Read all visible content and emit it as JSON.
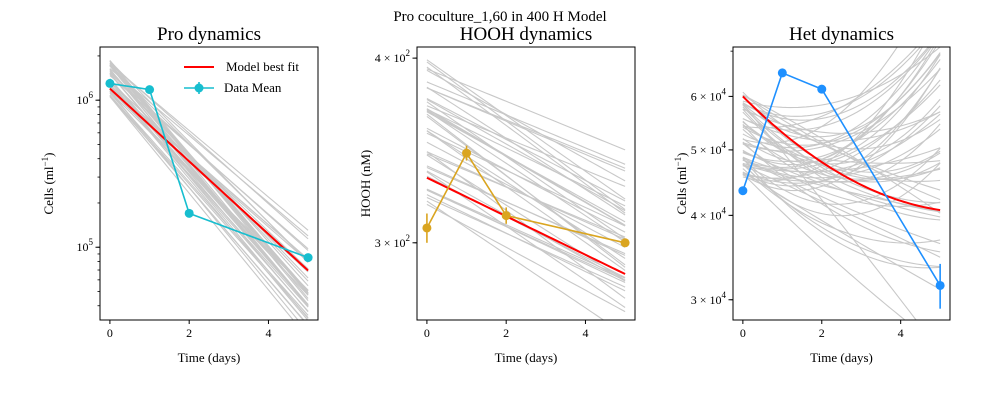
{
  "figure": {
    "suptitle": "Pro coculture_1,60 in 400 H Model"
  },
  "chart_data": [
    {
      "type": "line",
      "title": "Pro dynamics",
      "xlabel": "Time (days)",
      "ylabel": "Cells (ml$^{-1}$)",
      "ylabel_text": "Cells (ml",
      "ylabel_sup": "−1",
      "ylabel_close": ")",
      "yscale": "log",
      "xlim": [
        -0.25,
        5.25
      ],
      "ylim": [
        32000,
        2300000
      ],
      "xticks": [
        0,
        2,
        4
      ],
      "xtick_labels": [
        "0",
        "2",
        "4"
      ],
      "yticks_major": [
        {
          "value": 100000,
          "base": "10",
          "exp": "5"
        },
        {
          "value": 1000000,
          "base": "10",
          "exp": "6"
        }
      ],
      "legend": {
        "placement": "top-right",
        "entries": [
          "Model best fit",
          "Data Mean"
        ]
      },
      "best_fit": {
        "name": "Model best fit",
        "color": "#ff0000",
        "model": {
          "kind": "exp",
          "y0": 1200000,
          "rate": -0.57
        }
      },
      "ensemble": {
        "color": "#c8c8c8",
        "count": 45,
        "model": {
          "kind": "exp",
          "y0_range": [
            1050000,
            1900000
          ],
          "rate_range": [
            -0.76,
            -0.5
          ]
        }
      },
      "data_mean": {
        "name": "Data Mean",
        "color": "#17becf",
        "x": [
          0,
          1,
          2,
          5
        ],
        "y": [
          1300000,
          1180000,
          170000,
          85000
        ],
        "err": [
          0,
          0,
          0,
          0
        ]
      }
    },
    {
      "type": "line",
      "title": "HOOH dynamics",
      "xlabel": "Time (days)",
      "ylabel": "HOOH (nM)",
      "ylabel_text": "HOOH (nM)",
      "yscale": "log",
      "xlim": [
        -0.25,
        5.25
      ],
      "ylim": [
        266,
        407
      ],
      "xticks": [
        0,
        2,
        4
      ],
      "xtick_labels": [
        "0",
        "2",
        "4"
      ],
      "yticks_major": [
        {
          "value": 300,
          "base": "3 × 10",
          "exp": "2"
        },
        {
          "value": 400,
          "base": "4 × 10",
          "exp": "2"
        }
      ],
      "best_fit": {
        "name": "Model best fit",
        "color": "#ff0000",
        "model": {
          "kind": "exp",
          "y0": 332,
          "rate": -0.03
        }
      },
      "ensemble": {
        "color": "#c8c8c8",
        "count": 42,
        "model": {
          "kind": "exp",
          "y0_range": [
            318,
            400
          ],
          "rate_range": [
            -0.048,
            -0.025
          ]
        }
      },
      "data_mean": {
        "name": "Data Mean",
        "color": "#daa520",
        "x": [
          0,
          1,
          2,
          5
        ],
        "y": [
          307,
          345,
          313,
          300
        ],
        "err": [
          7,
          4,
          4,
          0
        ]
      }
    },
    {
      "type": "line",
      "title": "Het dynamics",
      "xlabel": "Time (days)",
      "ylabel": "Cells (ml$^{-1}$)",
      "ylabel_text": "Cells (ml",
      "ylabel_sup": "−1",
      "ylabel_close": ")",
      "yscale": "log",
      "xlim": [
        -0.25,
        5.25
      ],
      "ylim": [
        28000,
        71000
      ],
      "xticks": [
        0,
        2,
        4
      ],
      "xtick_labels": [
        "0",
        "2",
        "4"
      ],
      "yticks_major": [
        {
          "value": 30000,
          "base": "3 × 10",
          "exp": "4"
        },
        {
          "value": 40000,
          "base": "4 × 10",
          "exp": "4"
        },
        {
          "value": 50000,
          "base": "5 × 10",
          "exp": "4"
        },
        {
          "value": 60000,
          "base": "6 × 10",
          "exp": "4"
        }
      ],
      "best_fit": {
        "name": "Model best fit",
        "color": "#ff0000",
        "model": {
          "kind": "quad_log",
          "y0": 60000,
          "a": -0.135,
          "b": 0.0115
        }
      },
      "ensemble": {
        "color": "#c8c8c8",
        "count": 55,
        "model": {
          "kind": "quad_log",
          "y0_range": [
            45000,
            61000
          ],
          "a_range": [
            -0.16,
            -0.02
          ],
          "b_range": [
            -0.004,
            0.032
          ]
        }
      },
      "data_mean": {
        "name": "Data Mean",
        "color": "#1e90ff",
        "x": [
          0,
          1,
          2,
          5
        ],
        "y": [
          43500,
          65000,
          61500,
          31500
        ],
        "err": [
          0,
          0,
          0,
          2400
        ]
      }
    }
  ]
}
